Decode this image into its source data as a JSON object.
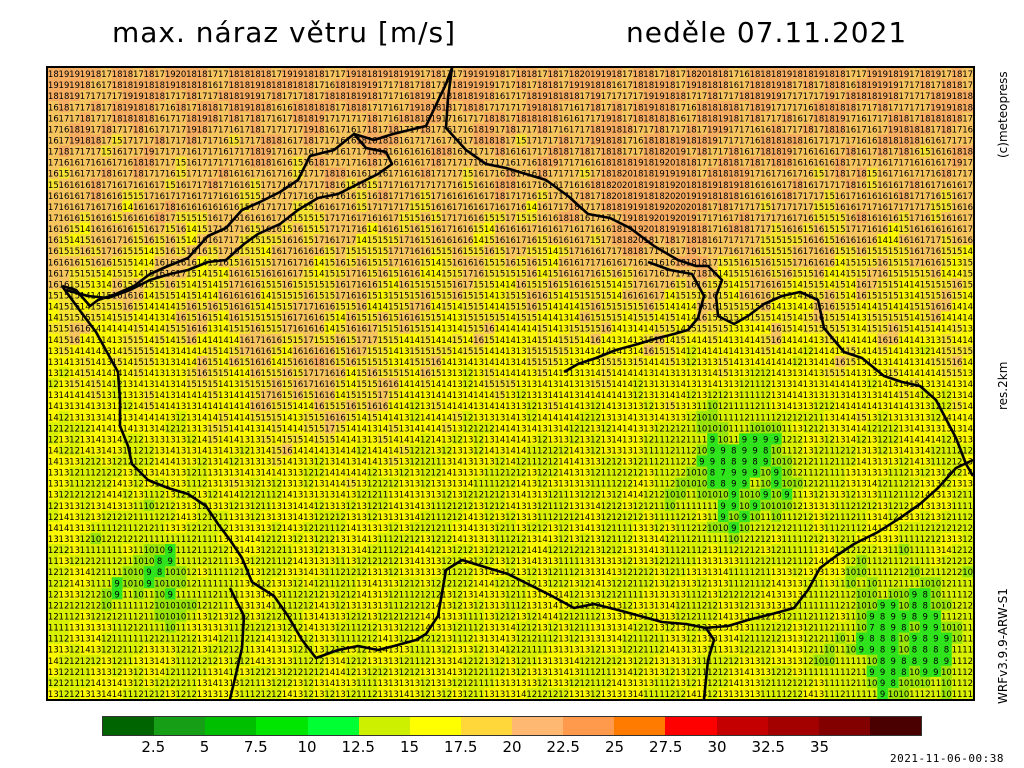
{
  "header": {
    "title": "max. náraz větru [m/s]",
    "date": "neděle 07.11.2021"
  },
  "side": {
    "credit": "(c)meteopress",
    "resolution": "res.2km",
    "model": "WRFv3.9.9-ARW-S1"
  },
  "legend": {
    "colors": [
      "#006400",
      "#169e16",
      "#00bf00",
      "#00e600",
      "#00ff33",
      "#cdf000",
      "#ffff00",
      "#ffd73a",
      "#ffb871",
      "#ff9a4d",
      "#ff7b00",
      "#ff0000",
      "#c40000",
      "#a30000",
      "#820000",
      "#4a0000"
    ],
    "labels": [
      "2.5",
      "5",
      "7.5",
      "10",
      "12.5",
      "15",
      "17.5",
      "20",
      "22.5",
      "25",
      "27.5",
      "30",
      "32.5",
      "35"
    ]
  },
  "footer": {
    "timestamp": "2021-11-06-00:38"
  },
  "map": {
    "grid_cols": 87,
    "grid_rows": 57
  }
}
